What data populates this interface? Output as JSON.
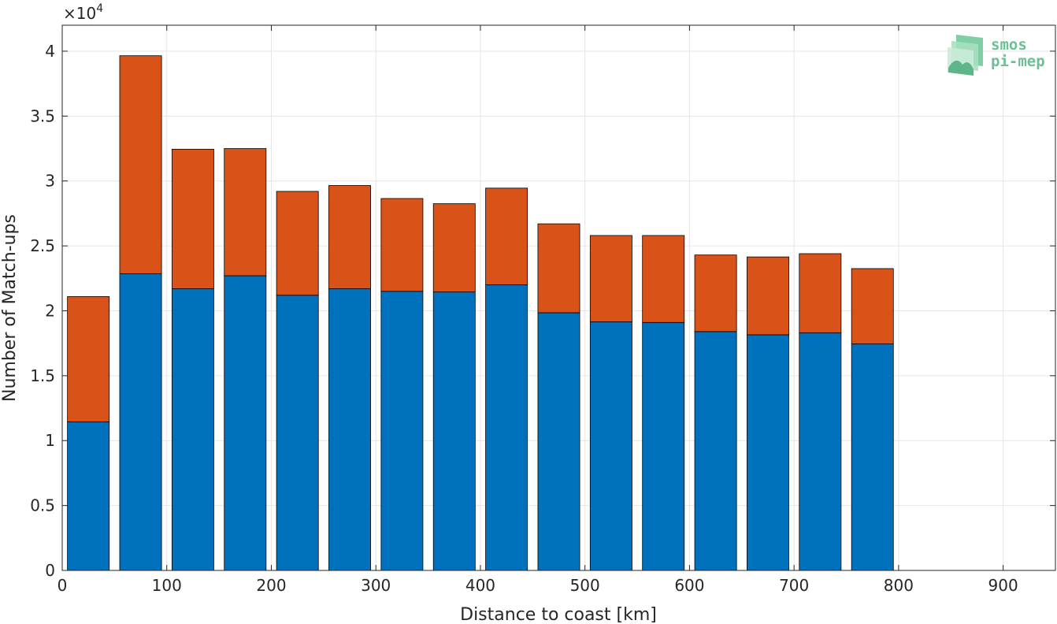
{
  "chart_data": {
    "type": "bar",
    "stacked": true,
    "xlabel": "Distance to coast [km]",
    "ylabel": "Number of Match-ups",
    "exponent_label": {
      "base": "×10",
      "power": "4"
    },
    "xlim": [
      0,
      950
    ],
    "ylim": [
      0,
      42000
    ],
    "x_ticks": [
      0,
      100,
      200,
      300,
      400,
      500,
      600,
      700,
      800,
      900
    ],
    "y_ticks": [
      0,
      5000,
      10000,
      15000,
      20000,
      25000,
      30000,
      35000,
      40000
    ],
    "y_tick_labels": [
      "0",
      "0.5",
      "1",
      "1.5",
      "2",
      "2.5",
      "3",
      "3.5",
      "4"
    ],
    "grid": true,
    "bar_width": 40,
    "x": [
      25,
      75,
      125,
      175,
      225,
      275,
      325,
      375,
      425,
      475,
      525,
      575,
      625,
      675,
      725,
      775
    ],
    "series": [
      {
        "color": "#0072bd",
        "values": [
          11450,
          22850,
          21700,
          22700,
          21200,
          21700,
          21500,
          21450,
          22000,
          19850,
          19150,
          19100,
          18400,
          18150,
          18300,
          17450
        ]
      },
      {
        "color": "#d95319",
        "values": [
          9650,
          16800,
          10750,
          9800,
          8000,
          7950,
          7150,
          6800,
          7450,
          6850,
          6650,
          6700,
          5900,
          6000,
          6100,
          5800
        ]
      }
    ]
  },
  "logo": {
    "line1": "smos",
    "line2": "pi-mep",
    "color": "#6dbf96"
  }
}
